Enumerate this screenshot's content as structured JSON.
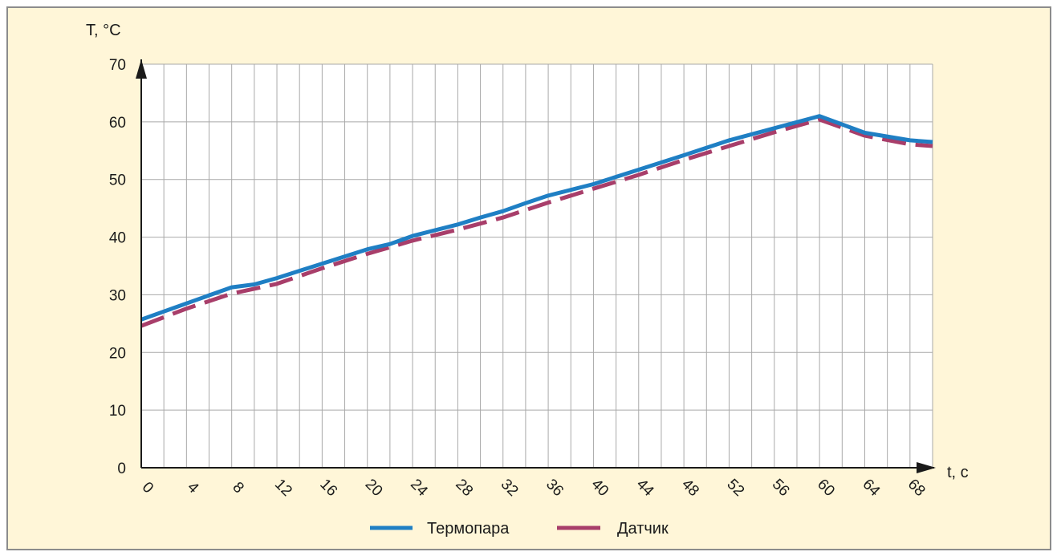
{
  "chart_data": {
    "type": "line",
    "ylabel": "T, °C",
    "xlabel": "t, c",
    "xlim": [
      0,
      70
    ],
    "ylim": [
      0,
      70
    ],
    "x_ticks": [
      0,
      4,
      8,
      12,
      16,
      20,
      24,
      28,
      32,
      36,
      40,
      44,
      48,
      52,
      56,
      60,
      64,
      68
    ],
    "y_ticks": [
      0,
      10,
      20,
      30,
      40,
      50,
      60,
      70
    ],
    "grid": true,
    "legend_position": "bottom-center",
    "series": [
      {
        "name": "Термопара",
        "color": "#1f7fc4",
        "style": "solid",
        "x": [
          0,
          4,
          8,
          10,
          12,
          16,
          20,
          22,
          24,
          28,
          30,
          32,
          34,
          36,
          40,
          44,
          48,
          52,
          56,
          60,
          64,
          68,
          70
        ],
        "y": [
          25.7,
          28.5,
          31.3,
          31.8,
          32.9,
          35.4,
          37.9,
          38.8,
          40.2,
          42.2,
          43.4,
          44.5,
          45.9,
          47.2,
          49.2,
          51.7,
          54.2,
          56.8,
          58.9,
          61.0,
          58.1,
          56.8,
          56.5
        ]
      },
      {
        "name": "Датчик",
        "color": "#a83e6a",
        "style": "dashed",
        "x": [
          0,
          4,
          8,
          12,
          16,
          20,
          24,
          28,
          32,
          36,
          40,
          44,
          48,
          52,
          56,
          60,
          64,
          68,
          70
        ],
        "y": [
          24.6,
          27.6,
          30.2,
          31.9,
          34.6,
          37.1,
          39.4,
          41.3,
          43.4,
          46.0,
          48.4,
          50.8,
          53.4,
          55.8,
          58.2,
          60.4,
          57.6,
          56.1,
          55.8
        ]
      }
    ]
  }
}
